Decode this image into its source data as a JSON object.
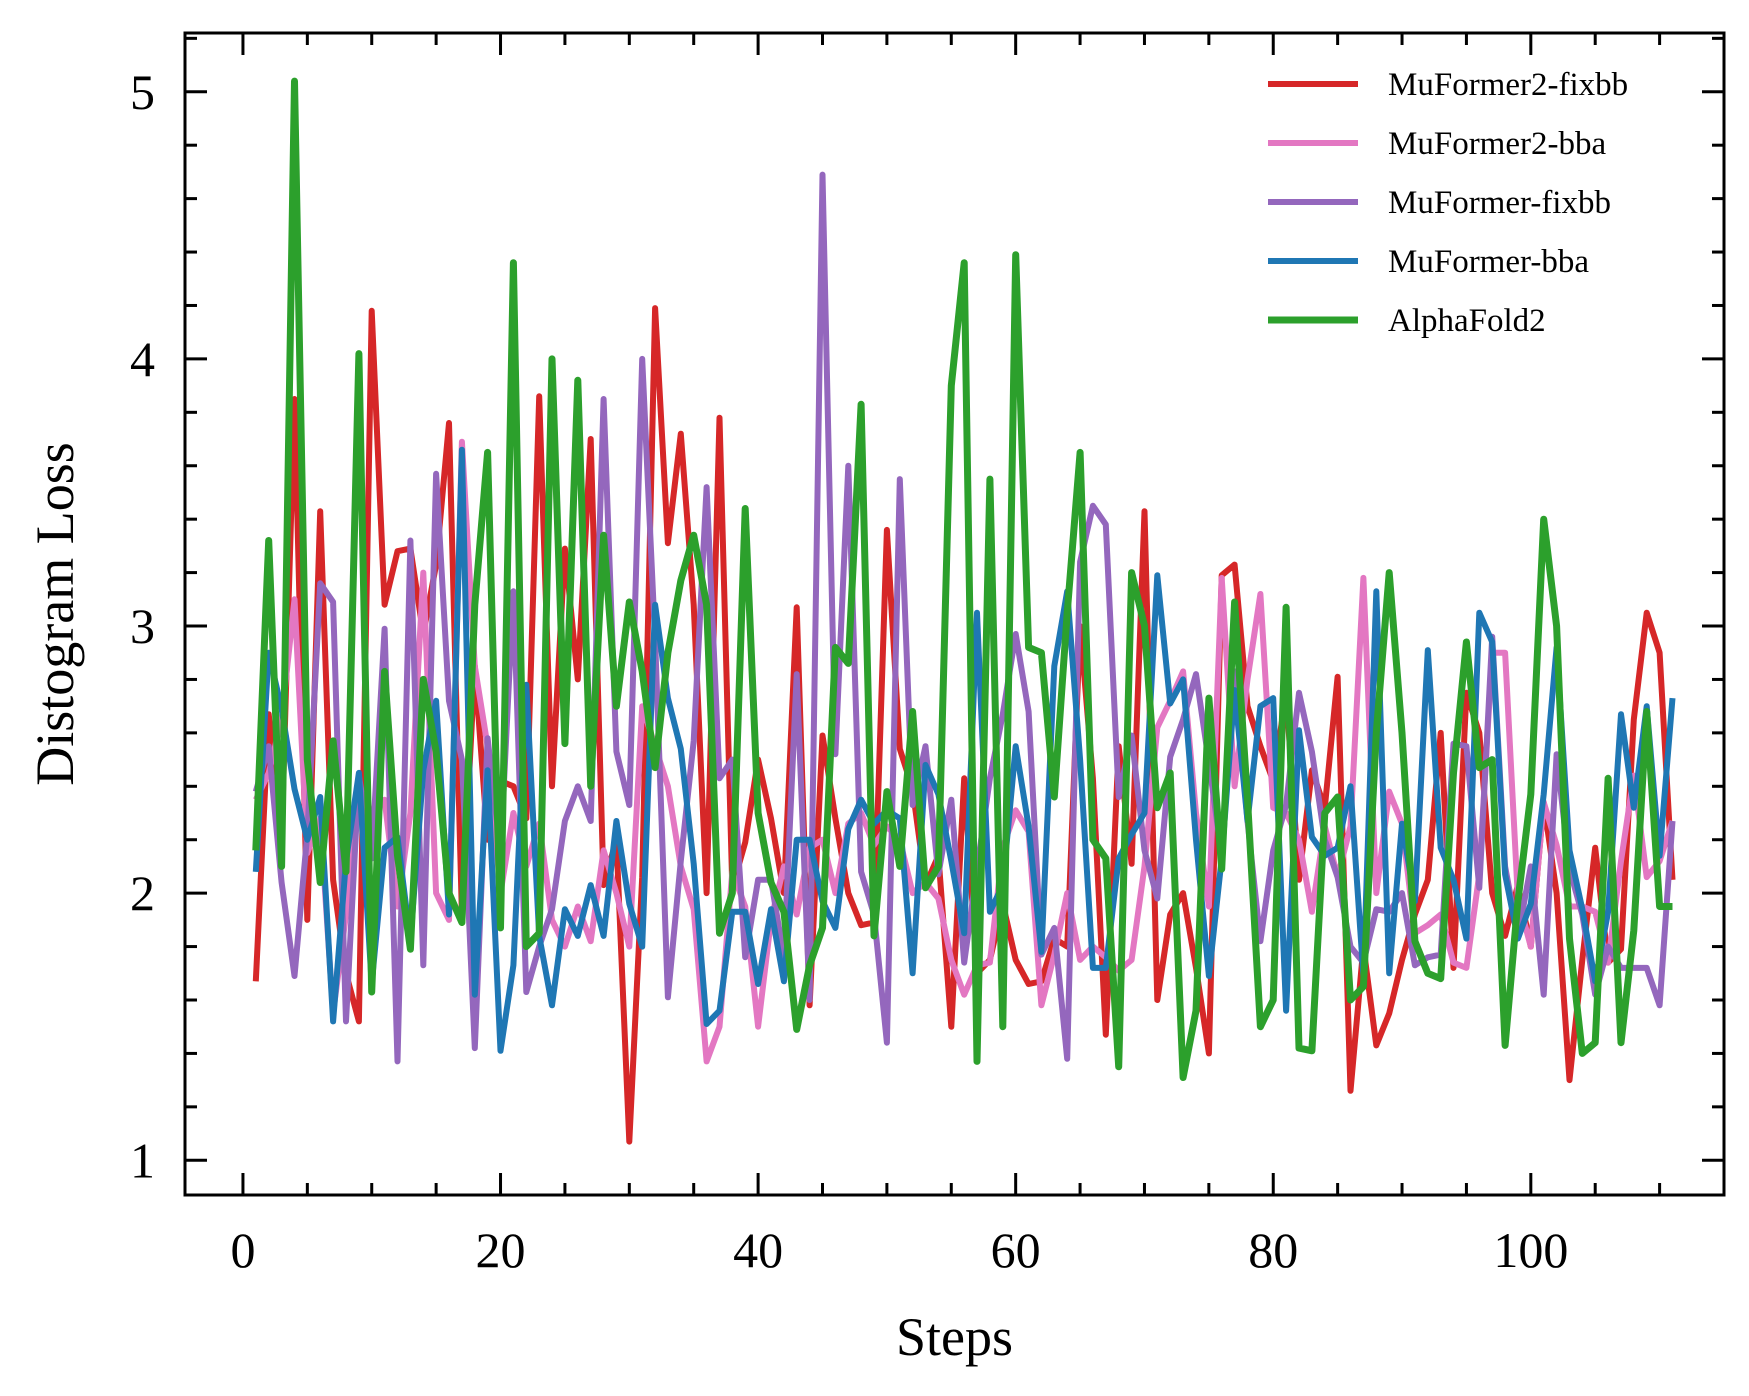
{
  "chart_data": {
    "type": "line",
    "xlabel": "Steps",
    "ylabel": "Distogram Loss",
    "xlim": [
      -4.5,
      115
    ],
    "ylim": [
      0.87,
      5.22
    ],
    "x_ticks": [
      0,
      20,
      40,
      60,
      80,
      100
    ],
    "y_ticks": [
      1,
      2,
      3,
      4,
      5
    ],
    "x_tick_labels": [
      "0",
      "20",
      "40",
      "60",
      "80",
      "100"
    ],
    "y_tick_labels": [
      "1",
      "2",
      "3",
      "4",
      "5"
    ],
    "x_minor_step": 5,
    "y_minor_step": 0.2,
    "ticks_direction": "in",
    "grid": false,
    "legend_position": "top-right",
    "x_start": 1,
    "series": [
      {
        "name": "MuFormer2-fixbb",
        "color": "#d62728",
        "values": [
          1.67,
          2.67,
          2.2,
          3.85,
          1.9,
          3.43,
          2.05,
          1.7,
          1.52,
          4.18,
          3.08,
          3.28,
          3.29,
          2.97,
          3.23,
          3.76,
          1.92,
          2.85,
          2.2,
          2.42,
          2.4,
          2.28,
          3.86,
          2.4,
          3.29,
          2.8,
          3.7,
          2.03,
          2.2,
          1.07,
          2.06,
          4.19,
          3.31,
          3.72,
          3.08,
          2.0,
          3.78,
          2.02,
          2.19,
          2.5,
          2.28,
          2.0,
          3.07,
          1.58,
          2.59,
          2.28,
          2.0,
          1.88,
          1.89,
          3.36,
          2.54,
          2.39,
          2.03,
          2.14,
          1.5,
          2.43,
          1.7,
          1.75,
          1.96,
          1.75,
          1.66,
          1.67,
          1.83,
          1.8,
          3.0,
          2.43,
          1.47,
          2.55,
          2.11,
          3.43,
          1.6,
          1.92,
          2.0,
          1.72,
          1.4,
          3.19,
          3.23,
          2.7,
          2.55,
          2.42,
          2.75,
          2.05,
          2.46,
          2.32,
          2.81,
          1.26,
          1.8,
          1.43,
          1.55,
          1.75,
          1.92,
          2.05,
          2.6,
          1.72,
          2.75,
          2.6,
          2.0,
          1.84,
          2.03,
          1.8,
          2.34,
          2.0,
          1.3,
          1.75,
          2.17,
          1.74,
          1.79,
          2.65,
          3.05,
          2.9,
          2.05
        ],
        "width": 6
      },
      {
        "name": "MuFormer2-bba",
        "color": "#e377c2",
        "values": [
          2.35,
          2.45,
          2.65,
          3.1,
          2.15,
          2.28,
          1.55,
          1.92,
          2.4,
          2.3,
          2.35,
          1.95,
          2.3,
          3.2,
          2.0,
          1.9,
          3.69,
          2.85,
          2.55,
          2.0,
          2.3,
          2.1,
          2.26,
          1.9,
          1.8,
          1.95,
          1.82,
          2.16,
          2.0,
          1.8,
          2.7,
          2.55,
          2.4,
          2.1,
          1.94,
          1.37,
          1.5,
          2.08,
          1.95,
          1.5,
          1.9,
          2.1,
          1.92,
          2.17,
          2.2,
          2.0,
          2.26,
          2.3,
          2.18,
          2.25,
          2.2,
          2.0,
          2.04,
          1.98,
          1.75,
          1.62,
          1.73,
          1.74,
          2.17,
          2.31,
          2.23,
          1.58,
          1.77,
          2.0,
          1.75,
          1.8,
          1.76,
          1.71,
          1.75,
          2.1,
          2.62,
          2.72,
          2.83,
          2.3,
          1.95,
          3.18,
          2.4,
          2.8,
          3.12,
          2.32,
          2.3,
          2.2,
          1.93,
          2.25,
          2.06,
          2.25,
          3.18,
          2.0,
          2.38,
          2.26,
          1.85,
          1.88,
          1.92,
          1.74,
          1.72,
          2.07,
          2.9,
          2.9,
          1.98,
          1.8,
          2.34,
          2.18,
          1.95,
          1.95,
          1.93,
          1.74,
          2.12,
          2.44,
          2.06,
          2.12,
          2.27
        ],
        "width": 6
      },
      {
        "name": "MuFormer-fixbb",
        "color": "#9467bd",
        "values": [
          2.38,
          2.55,
          2.04,
          1.69,
          2.22,
          3.16,
          3.09,
          1.52,
          2.44,
          2.13,
          2.99,
          1.37,
          3.32,
          1.73,
          3.57,
          2.72,
          2.5,
          1.42,
          2.58,
          2.15,
          3.13,
          1.63,
          1.8,
          1.94,
          2.27,
          2.4,
          2.27,
          3.85,
          2.53,
          2.33,
          4.0,
          2.95,
          1.61,
          2.12,
          2.57,
          3.52,
          2.43,
          2.5,
          1.76,
          2.05,
          2.05,
          1.76,
          2.82,
          1.6,
          4.69,
          2.52,
          3.6,
          2.08,
          1.92,
          1.44,
          3.55,
          2.33,
          2.55,
          2.07,
          2.35,
          1.74,
          2.09,
          2.43,
          2.67,
          2.97,
          2.68,
          1.77,
          1.87,
          1.38,
          3.24,
          3.45,
          3.38,
          2.36,
          2.59,
          2.16,
          1.98,
          2.51,
          2.65,
          2.82,
          2.49,
          2.14,
          2.83,
          2.27,
          1.82,
          2.16,
          2.33,
          2.75,
          2.53,
          2.2,
          2.06,
          1.8,
          1.74,
          1.94,
          1.93,
          2.0,
          1.73,
          1.76,
          1.77,
          2.56,
          2.55,
          2.02,
          2.96,
          2.1,
          1.84,
          2.1,
          1.62,
          2.52,
          2.09,
          1.92,
          1.62,
          1.8,
          1.72,
          1.72,
          1.72,
          1.58,
          2.27
        ],
        "width": 6
      },
      {
        "name": "MuFormer-bba",
        "color": "#1f77b4",
        "values": [
          2.08,
          2.9,
          2.69,
          2.39,
          2.2,
          2.36,
          1.52,
          2.12,
          2.45,
          1.66,
          2.17,
          2.21,
          1.82,
          2.46,
          2.72,
          1.92,
          3.66,
          1.62,
          2.46,
          1.41,
          1.73,
          2.78,
          1.84,
          1.58,
          1.94,
          1.84,
          2.03,
          1.84,
          2.27,
          1.96,
          1.8,
          3.08,
          2.73,
          2.54,
          2.11,
          1.51,
          1.56,
          1.93,
          1.93,
          1.66,
          1.94,
          1.67,
          2.2,
          2.2,
          1.97,
          1.87,
          2.24,
          2.35,
          2.26,
          2.31,
          2.28,
          1.7,
          2.48,
          2.37,
          2.12,
          1.85,
          3.05,
          1.93,
          2.03,
          2.55,
          2.25,
          1.78,
          2.85,
          3.13,
          2.5,
          1.72,
          1.72,
          2.13,
          2.22,
          2.3,
          3.19,
          2.71,
          2.8,
          2.2,
          1.69,
          2.13,
          2.76,
          2.27,
          2.7,
          2.73,
          1.56,
          2.61,
          2.21,
          2.14,
          2.17,
          2.4,
          1.69,
          3.13,
          1.7,
          2.26,
          1.97,
          2.91,
          2.17,
          2.05,
          1.83,
          3.05,
          2.94,
          2.07,
          1.83,
          1.96,
          2.37,
          2.92,
          2.16,
          1.94,
          1.67,
          1.93,
          2.67,
          2.32,
          2.7,
          2.14,
          2.73
        ],
        "width": 6
      },
      {
        "name": "AlphaFold2",
        "color": "#2ca02c",
        "values": [
          2.16,
          3.32,
          2.1,
          5.04,
          2.5,
          2.04,
          2.57,
          2.08,
          4.02,
          1.63,
          2.83,
          2.14,
          1.79,
          2.8,
          2.53,
          2.0,
          1.89,
          3.08,
          3.65,
          1.87,
          4.36,
          1.8,
          1.85,
          4.0,
          2.56,
          3.92,
          2.4,
          3.34,
          2.7,
          3.09,
          2.83,
          2.47,
          2.9,
          3.17,
          3.34,
          3.08,
          1.85,
          2.0,
          3.44,
          2.3,
          2.04,
          1.93,
          1.49,
          1.73,
          1.87,
          2.92,
          2.86,
          3.83,
          1.84,
          2.38,
          2.1,
          2.68,
          2.02,
          2.1,
          3.9,
          4.36,
          1.37,
          3.55,
          1.5,
          4.39,
          2.92,
          2.9,
          2.36,
          3.05,
          3.65,
          2.2,
          2.13,
          1.35,
          3.2,
          3.0,
          2.32,
          2.45,
          1.31,
          1.56,
          2.73,
          2.09,
          3.09,
          2.35,
          1.5,
          1.6,
          3.07,
          1.42,
          1.41,
          2.3,
          2.36,
          1.6,
          1.65,
          2.6,
          3.2,
          2.6,
          1.82,
          1.7,
          1.68,
          2.45,
          2.94,
          2.47,
          2.5,
          1.43,
          1.97,
          2.37,
          3.4,
          3.0,
          1.83,
          1.4,
          1.44,
          2.43,
          1.44,
          1.86,
          2.68,
          1.95,
          1.95
        ],
        "width": 7
      }
    ]
  }
}
